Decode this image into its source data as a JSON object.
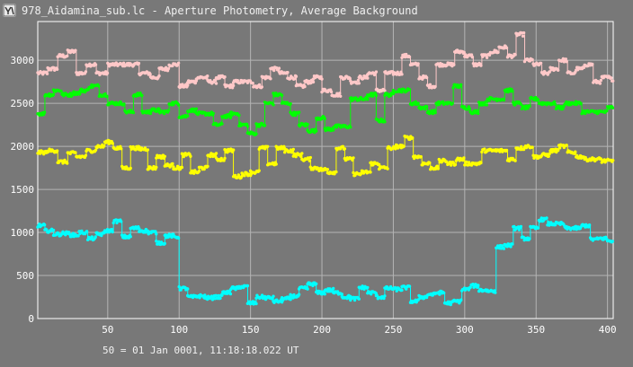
{
  "window": {
    "title": "978_Aidamina_sub.lc - Aperture Photometry, Average Background"
  },
  "footer": {
    "label": "50 = 01 Jan 0001, 11:18:18.022 UT"
  },
  "colors": {
    "background": "#787878",
    "grid": "#b4b4b4",
    "axis": "#ffffff",
    "series": [
      "#ffc8c8",
      "#00ff00",
      "#ffff00",
      "#00ffff"
    ]
  },
  "chart_data": {
    "type": "scatter",
    "title": "",
    "xlabel": "",
    "ylabel": "",
    "xlim": [
      1,
      404
    ],
    "ylim": [
      0,
      3450
    ],
    "xticks": [
      50,
      100,
      150,
      200,
      250,
      300,
      350,
      400
    ],
    "yticks": [
      0,
      500,
      1000,
      1500,
      2000,
      2500,
      3000
    ],
    "grid": true,
    "series": [
      {
        "color": "#ffc8c8",
        "segments": [
          [
            1,
            2850
          ],
          [
            8,
            2900
          ],
          [
            15,
            3050
          ],
          [
            22,
            3100
          ],
          [
            28,
            2850
          ],
          [
            35,
            2950
          ],
          [
            42,
            2850
          ],
          [
            50,
            2950
          ],
          [
            57,
            2950
          ],
          [
            64,
            2950
          ],
          [
            72,
            2850
          ],
          [
            80,
            2800
          ],
          [
            86,
            2900
          ],
          [
            93,
            2950
          ],
          [
            100,
            2700
          ],
          [
            106,
            2750
          ],
          [
            112,
            2800
          ],
          [
            120,
            2750
          ],
          [
            126,
            2800
          ],
          [
            132,
            2700
          ],
          [
            138,
            2750
          ],
          [
            145,
            2750
          ],
          [
            152,
            2700
          ],
          [
            158,
            2800
          ],
          [
            164,
            2900
          ],
          [
            170,
            2850
          ],
          [
            176,
            2800
          ],
          [
            182,
            2700
          ],
          [
            188,
            2750
          ],
          [
            194,
            2800
          ],
          [
            200,
            2650
          ],
          [
            207,
            2600
          ],
          [
            213,
            2800
          ],
          [
            220,
            2750
          ],
          [
            226,
            2800
          ],
          [
            232,
            2850
          ],
          [
            238,
            2650
          ],
          [
            244,
            2850
          ],
          [
            250,
            2850
          ],
          [
            256,
            3050
          ],
          [
            262,
            2950
          ],
          [
            268,
            2800
          ],
          [
            274,
            2700
          ],
          [
            280,
            2950
          ],
          [
            287,
            2950
          ],
          [
            293,
            3100
          ],
          [
            300,
            3050
          ],
          [
            306,
            2950
          ],
          [
            312,
            3050
          ],
          [
            318,
            3100
          ],
          [
            324,
            3150
          ],
          [
            330,
            3050
          ],
          [
            336,
            3300
          ],
          [
            342,
            3000
          ],
          [
            348,
            2950
          ],
          [
            354,
            2850
          ],
          [
            360,
            2900
          ],
          [
            366,
            3000
          ],
          [
            372,
            2850
          ],
          [
            378,
            2900
          ],
          [
            384,
            2950
          ],
          [
            390,
            2750
          ],
          [
            396,
            2800
          ],
          [
            402,
            2780
          ]
        ]
      },
      {
        "color": "#00ff00",
        "segments": [
          [
            1,
            2380
          ],
          [
            6,
            2600
          ],
          [
            12,
            2650
          ],
          [
            18,
            2600
          ],
          [
            25,
            2620
          ],
          [
            31,
            2650
          ],
          [
            37,
            2700
          ],
          [
            44,
            2600
          ],
          [
            50,
            2500
          ],
          [
            56,
            2500
          ],
          [
            62,
            2400
          ],
          [
            68,
            2600
          ],
          [
            74,
            2400
          ],
          [
            80,
            2420
          ],
          [
            86,
            2400
          ],
          [
            93,
            2500
          ],
          [
            100,
            2350
          ],
          [
            106,
            2420
          ],
          [
            112,
            2380
          ],
          [
            118,
            2380
          ],
          [
            124,
            2250
          ],
          [
            130,
            2350
          ],
          [
            136,
            2380
          ],
          [
            142,
            2250
          ],
          [
            148,
            2150
          ],
          [
            154,
            2250
          ],
          [
            160,
            2500
          ],
          [
            166,
            2600
          ],
          [
            172,
            2500
          ],
          [
            178,
            2380
          ],
          [
            184,
            2250
          ],
          [
            190,
            2180
          ],
          [
            196,
            2330
          ],
          [
            202,
            2200
          ],
          [
            208,
            2230
          ],
          [
            214,
            2230
          ],
          [
            220,
            2550
          ],
          [
            226,
            2550
          ],
          [
            232,
            2600
          ],
          [
            238,
            2300
          ],
          [
            244,
            2600
          ],
          [
            250,
            2650
          ],
          [
            256,
            2650
          ],
          [
            262,
            2500
          ],
          [
            268,
            2450
          ],
          [
            274,
            2400
          ],
          [
            280,
            2500
          ],
          [
            286,
            2500
          ],
          [
            292,
            2700
          ],
          [
            298,
            2450
          ],
          [
            304,
            2400
          ],
          [
            310,
            2500
          ],
          [
            316,
            2550
          ],
          [
            322,
            2550
          ],
          [
            328,
            2650
          ],
          [
            334,
            2500
          ],
          [
            340,
            2450
          ],
          [
            346,
            2550
          ],
          [
            352,
            2500
          ],
          [
            358,
            2500
          ],
          [
            364,
            2450
          ],
          [
            370,
            2500
          ],
          [
            376,
            2500
          ],
          [
            382,
            2400
          ],
          [
            388,
            2400
          ],
          [
            394,
            2400
          ],
          [
            400,
            2450
          ]
        ]
      },
      {
        "color": "#ffff00",
        "segments": [
          [
            1,
            1930
          ],
          [
            8,
            1950
          ],
          [
            15,
            1820
          ],
          [
            22,
            1920
          ],
          [
            28,
            1880
          ],
          [
            35,
            1950
          ],
          [
            42,
            2000
          ],
          [
            48,
            2050
          ],
          [
            54,
            1980
          ],
          [
            60,
            1750
          ],
          [
            66,
            1980
          ],
          [
            72,
            1970
          ],
          [
            78,
            1750
          ],
          [
            84,
            1880
          ],
          [
            90,
            1780
          ],
          [
            96,
            1750
          ],
          [
            102,
            1900
          ],
          [
            108,
            1700
          ],
          [
            114,
            1750
          ],
          [
            120,
            1900
          ],
          [
            126,
            1850
          ],
          [
            132,
            1950
          ],
          [
            138,
            1650
          ],
          [
            144,
            1680
          ],
          [
            150,
            1700
          ],
          [
            156,
            1980
          ],
          [
            162,
            1800
          ],
          [
            168,
            1980
          ],
          [
            174,
            1950
          ],
          [
            180,
            1900
          ],
          [
            186,
            1850
          ],
          [
            192,
            1750
          ],
          [
            198,
            1730
          ],
          [
            204,
            1700
          ],
          [
            210,
            1980
          ],
          [
            216,
            1850
          ],
          [
            222,
            1680
          ],
          [
            228,
            1700
          ],
          [
            234,
            1800
          ],
          [
            240,
            1750
          ],
          [
            246,
            1980
          ],
          [
            252,
            2000
          ],
          [
            258,
            2100
          ],
          [
            264,
            1880
          ],
          [
            270,
            1800
          ],
          [
            276,
            1750
          ],
          [
            282,
            1830
          ],
          [
            288,
            1800
          ],
          [
            294,
            1850
          ],
          [
            300,
            1800
          ],
          [
            306,
            1800
          ],
          [
            312,
            1950
          ],
          [
            318,
            1950
          ],
          [
            324,
            1950
          ],
          [
            330,
            1850
          ],
          [
            336,
            1980
          ],
          [
            342,
            2000
          ],
          [
            348,
            1880
          ],
          [
            354,
            1900
          ],
          [
            360,
            1950
          ],
          [
            366,
            2000
          ],
          [
            372,
            1930
          ],
          [
            378,
            1880
          ],
          [
            384,
            1850
          ],
          [
            390,
            1850
          ],
          [
            396,
            1830
          ],
          [
            402,
            1830
          ]
        ]
      },
      {
        "color": "#00ffff",
        "segments": [
          [
            1,
            1080
          ],
          [
            6,
            1020
          ],
          [
            12,
            980
          ],
          [
            18,
            990
          ],
          [
            24,
            970
          ],
          [
            30,
            1000
          ],
          [
            36,
            930
          ],
          [
            42,
            980
          ],
          [
            48,
            1020
          ],
          [
            54,
            1130
          ],
          [
            60,
            950
          ],
          [
            66,
            1050
          ],
          [
            72,
            1020
          ],
          [
            78,
            1000
          ],
          [
            84,
            880
          ],
          [
            90,
            960
          ],
          [
            96,
            950
          ],
          [
            100,
            350
          ],
          [
            106,
            250
          ],
          [
            112,
            260
          ],
          [
            118,
            240
          ],
          [
            124,
            250
          ],
          [
            130,
            300
          ],
          [
            136,
            350
          ],
          [
            142,
            370
          ],
          [
            148,
            180
          ],
          [
            154,
            250
          ],
          [
            160,
            240
          ],
          [
            166,
            200
          ],
          [
            172,
            230
          ],
          [
            178,
            260
          ],
          [
            184,
            350
          ],
          [
            190,
            400
          ],
          [
            196,
            300
          ],
          [
            202,
            330
          ],
          [
            208,
            300
          ],
          [
            214,
            250
          ],
          [
            220,
            230
          ],
          [
            226,
            360
          ],
          [
            232,
            300
          ],
          [
            238,
            250
          ],
          [
            244,
            350
          ],
          [
            250,
            340
          ],
          [
            256,
            360
          ],
          [
            262,
            200
          ],
          [
            268,
            250
          ],
          [
            274,
            280
          ],
          [
            280,
            300
          ],
          [
            286,
            180
          ],
          [
            292,
            200
          ],
          [
            298,
            340
          ],
          [
            304,
            380
          ],
          [
            310,
            330
          ],
          [
            316,
            320
          ],
          [
            322,
            830
          ],
          [
            328,
            850
          ],
          [
            334,
            1050
          ],
          [
            340,
            930
          ],
          [
            346,
            1050
          ],
          [
            352,
            1150
          ],
          [
            358,
            1100
          ],
          [
            364,
            1100
          ],
          [
            370,
            1050
          ],
          [
            376,
            1050
          ],
          [
            382,
            1080
          ],
          [
            388,
            920
          ],
          [
            394,
            930
          ],
          [
            400,
            900
          ]
        ]
      }
    ]
  }
}
